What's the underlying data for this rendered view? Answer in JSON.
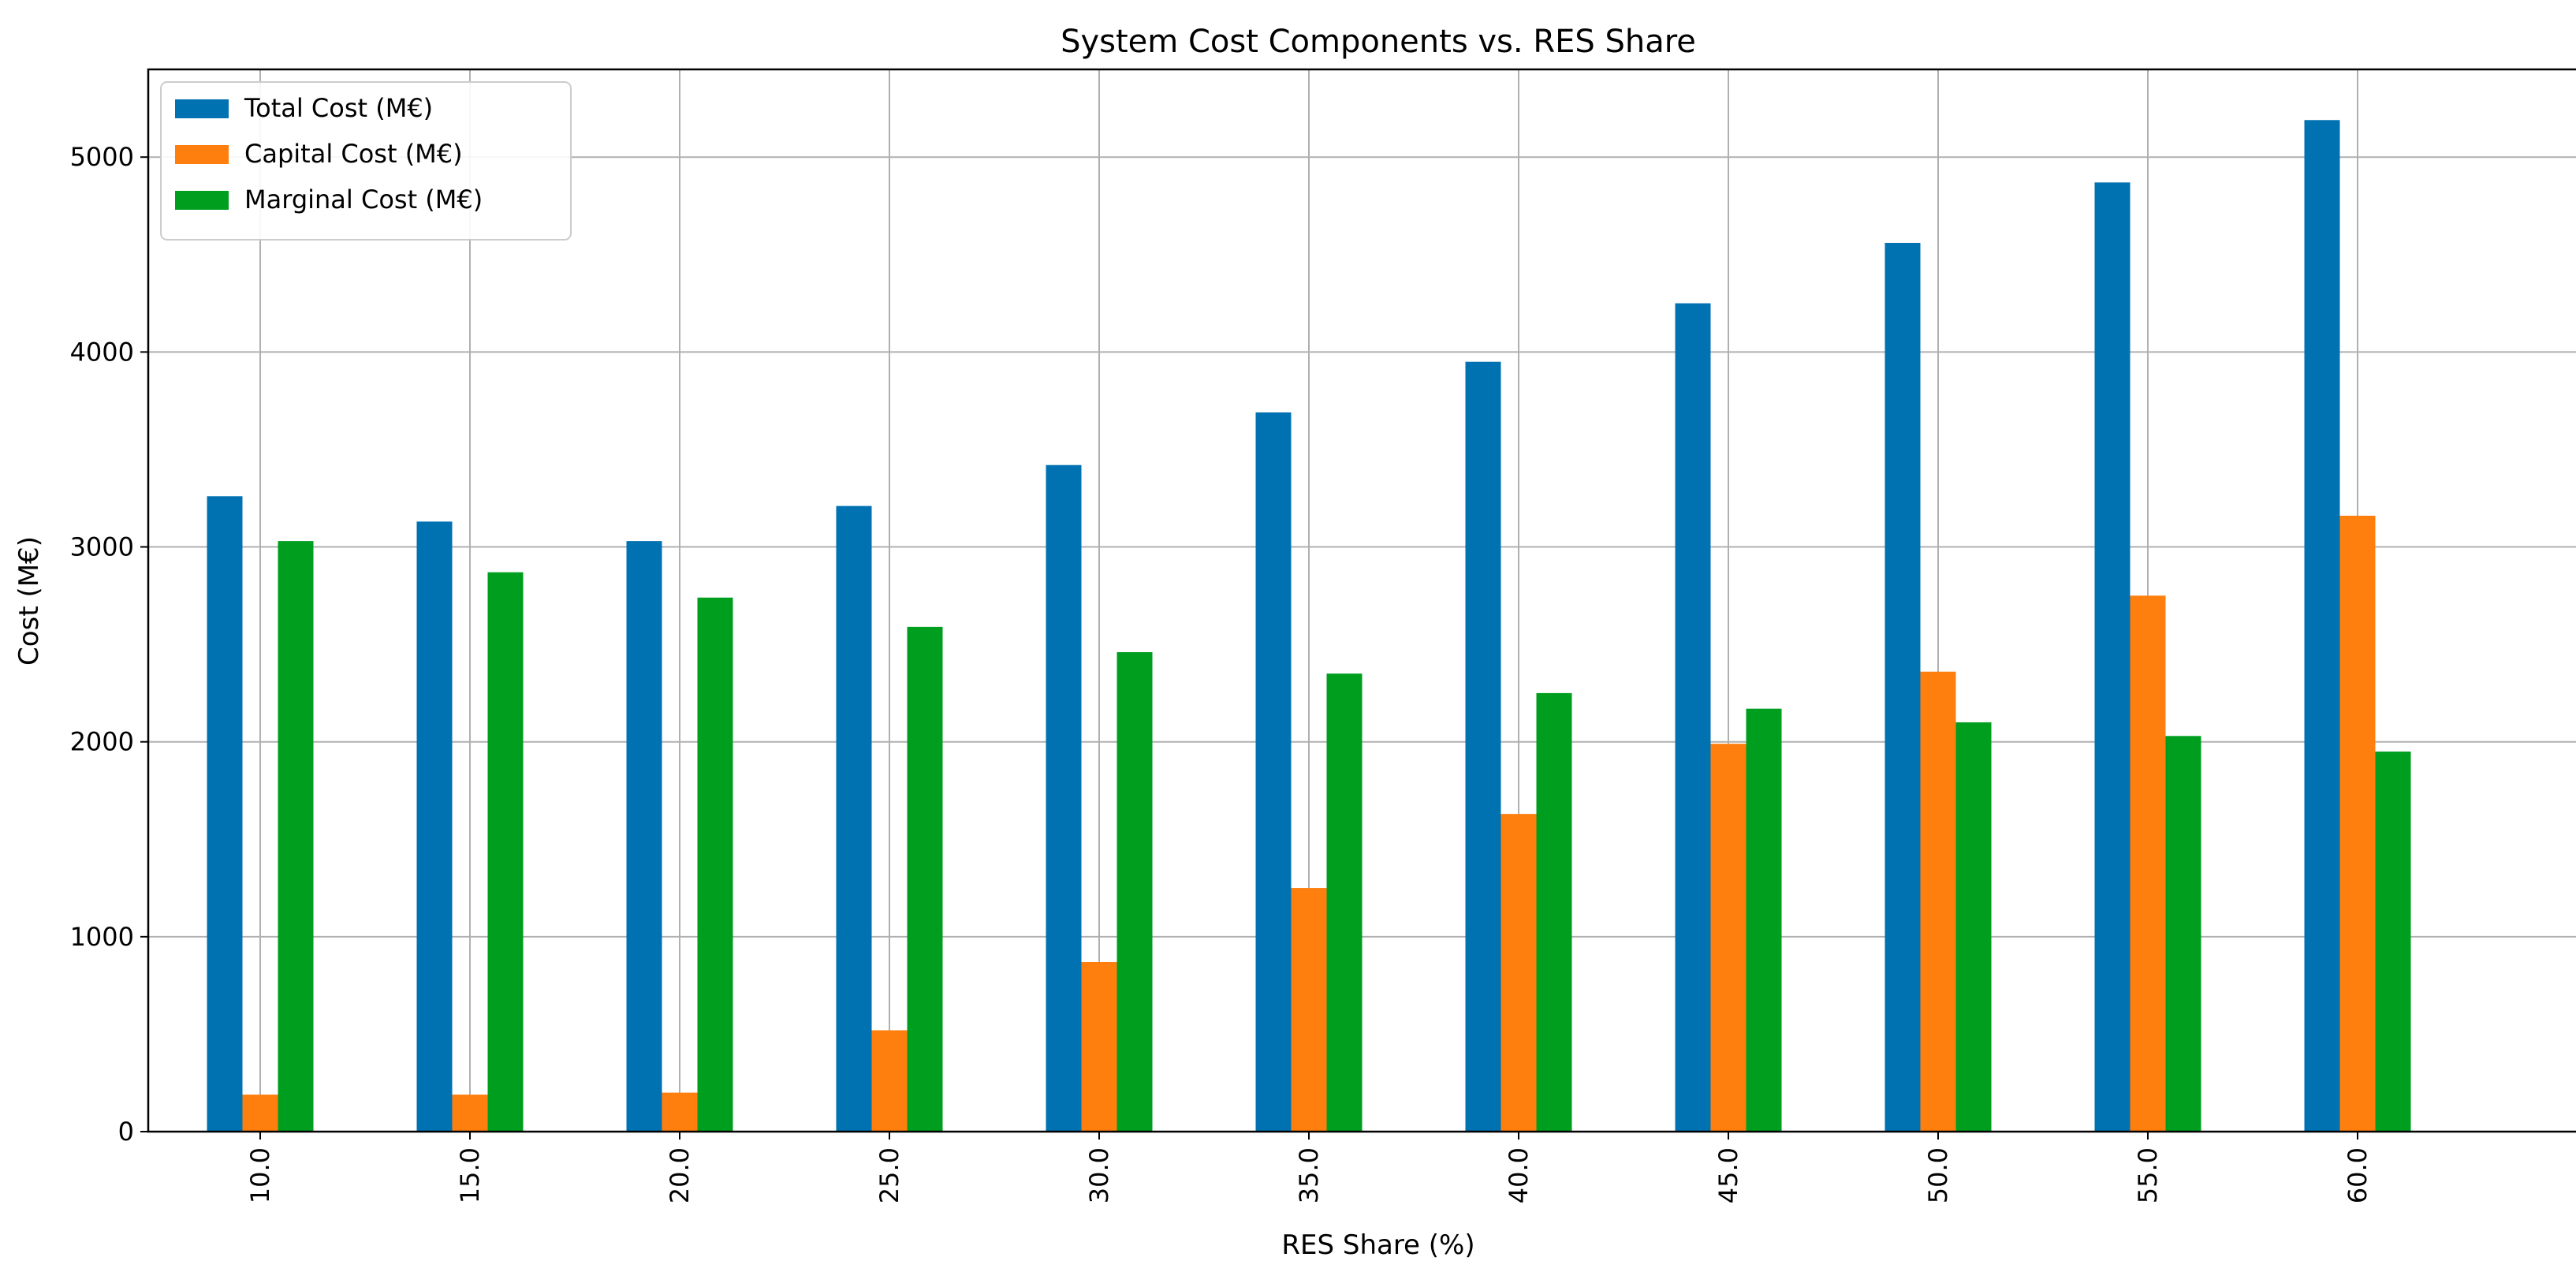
{
  "chart_data": {
    "type": "bar",
    "title": "System Cost Components vs. RES Share",
    "xlabel": "RES Share (%)",
    "ylabel": "Cost (M€)",
    "categories": [
      "10.0",
      "15.0",
      "20.0",
      "25.0",
      "30.0",
      "35.0",
      "40.0",
      "45.0",
      "50.0",
      "55.0",
      "60.0"
    ],
    "series": [
      {
        "name": "Total Cost (M€)",
        "color": "#0072b2",
        "values": [
          3260,
          3130,
          3030,
          3210,
          3420,
          3690,
          3950,
          4250,
          4560,
          4870,
          5190
        ]
      },
      {
        "name": "Capital Cost (M€)",
        "color": "#ff7f0e",
        "values": [
          190,
          190,
          200,
          520,
          870,
          1250,
          1630,
          1990,
          2360,
          2750,
          3160
        ]
      },
      {
        "name": "Marginal Cost (M€)",
        "color": "#009e1f",
        "values": [
          3030,
          2870,
          2740,
          2590,
          2460,
          2350,
          2250,
          2170,
          2100,
          2030,
          1950
        ]
      }
    ],
    "ylim": [
      0,
      5450
    ],
    "yticks": [
      0,
      1000,
      2000,
      3000,
      4000,
      5000
    ],
    "grid": true,
    "legend_position": "top-left"
  }
}
